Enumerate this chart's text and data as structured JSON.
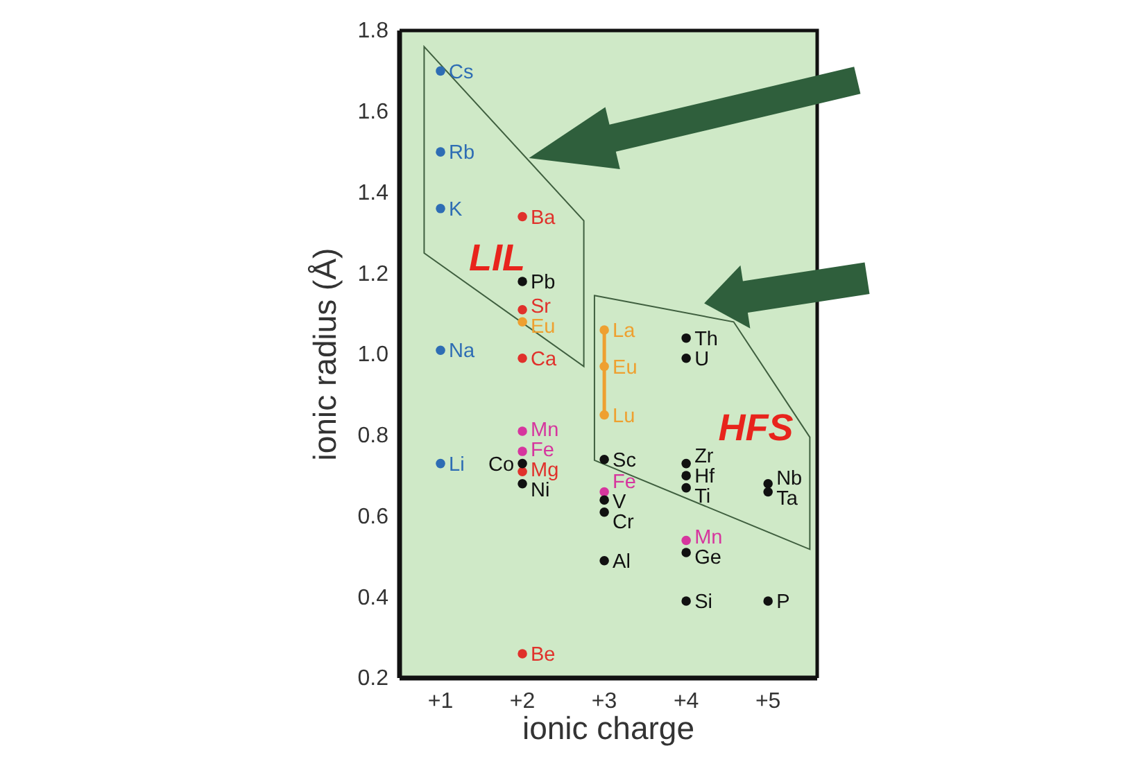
{
  "chart_data": {
    "type": "scatter",
    "xlabel": "ionic charge",
    "ylabel": "ionic radius (Å)",
    "xlim": [
      0.5,
      5.6
    ],
    "xticks": [
      {
        "value": 1,
        "label": "+1"
      },
      {
        "value": 2,
        "label": "+2"
      },
      {
        "value": 3,
        "label": "+3"
      },
      {
        "value": 4,
        "label": "+4"
      },
      {
        "value": 5,
        "label": "+5"
      }
    ],
    "ylim": [
      0.2,
      1.8
    ],
    "yticks": [
      0.2,
      0.4,
      0.6,
      0.8,
      {
        "value": 1,
        "label": "1.0"
      },
      1.2,
      1.4,
      1.6,
      1.8
    ],
    "marker": "circle",
    "annotations": [
      "LIL",
      "HFS"
    ],
    "series": [
      {
        "color": "#2e6db4",
        "x": [
          1,
          1,
          1,
          1,
          1
        ],
        "values": [
          1.7,
          1.5,
          1.36,
          1.01,
          0.73
        ],
        "value_labels": [
          "Cs",
          "Rb",
          "K",
          "Na",
          "Li"
        ]
      },
      {
        "color": "#e0312b",
        "x": [
          2,
          2,
          2,
          2,
          2
        ],
        "values": [
          1.34,
          1.11,
          0.99,
          0.71,
          0.26
        ],
        "value_labels": [
          "Ba",
          "Sr",
          "Ca",
          "Mg",
          "Be"
        ]
      },
      {
        "color": "#d6369e",
        "x": [
          2,
          2,
          3,
          4
        ],
        "values": [
          0.81,
          0.76,
          0.66,
          0.54
        ],
        "value_labels": [
          "Mn",
          "Fe",
          "Fe",
          "Mn"
        ]
      },
      {
        "color": "#eea030",
        "x": [
          2
        ],
        "values": [
          1.08
        ],
        "value_labels": [
          "Eu"
        ]
      },
      {
        "type": "line",
        "color": "#eea030",
        "x": [
          3,
          3,
          3
        ],
        "values": [
          1.06,
          0.97,
          0.85
        ],
        "value_labels": [
          "La",
          "Eu",
          "Lu"
        ]
      },
      {
        "color": "#111111",
        "x": [
          2,
          2,
          2,
          3,
          3,
          3,
          3,
          4,
          4,
          4,
          4,
          4,
          4,
          4,
          5,
          5,
          5
        ],
        "values": [
          1.18,
          0.73,
          0.68,
          0.74,
          0.64,
          0.61,
          0.49,
          1.04,
          0.99,
          0.73,
          0.7,
          0.67,
          0.51,
          0.39,
          0.68,
          0.66,
          0.39
        ],
        "value_labels": [
          "Pb",
          "Co",
          "Ni",
          "Sc",
          "V",
          "Cr",
          "Al",
          "Th",
          "U",
          "Zr",
          "Hf",
          "Ti",
          "Ge",
          "Si",
          "Nb",
          "Ta",
          "P"
        ]
      }
    ]
  }
}
